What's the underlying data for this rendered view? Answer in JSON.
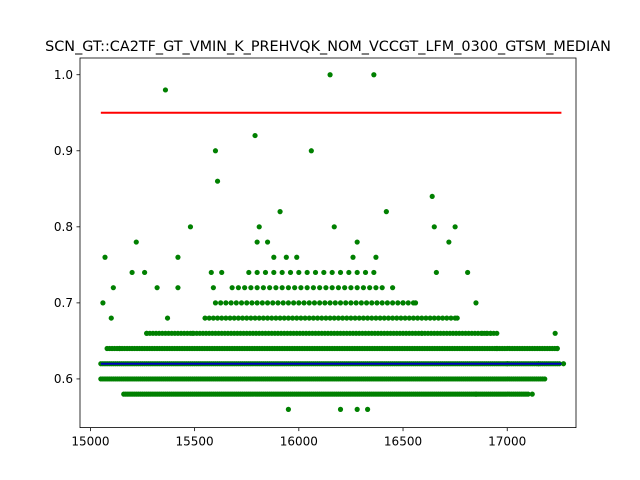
{
  "chart_data": {
    "type": "scatter",
    "title": "SCN_GT::CA2TF_GT_VMIN_K_PREHVQK_NOM_VCCGT_LFM_0300_GTSM_MEDIAN",
    "xlabel": "",
    "ylabel": "",
    "xlim": [
      14950,
      17330
    ],
    "ylim": [
      0.536,
      1.022
    ],
    "xticks": [
      "15000",
      "15500",
      "16000",
      "16500",
      "17000"
    ],
    "yticks": [
      "0.6",
      "0.7",
      "0.8",
      "0.9",
      "1.0"
    ],
    "xtick_values": [
      15000,
      15500,
      16000,
      16500,
      17000
    ],
    "ytick_values": [
      0.6,
      0.7,
      0.8,
      0.9,
      1.0
    ],
    "grid": false,
    "legend": "none",
    "colors": {
      "points": "#008000",
      "upper_limit": "#ff0000",
      "median": "#0000bf"
    },
    "lines": [
      {
        "kind": "upper-limit",
        "x": [
          15050,
          17260
        ],
        "y": [
          0.95,
          0.95
        ]
      },
      {
        "kind": "median",
        "x": [
          15050,
          17260
        ],
        "y": [
          0.62,
          0.62
        ]
      }
    ],
    "bands": [
      {
        "y": 0.58,
        "x_start": 15160,
        "x_end": 17100,
        "step": 10
      },
      {
        "y": 0.6,
        "x_start": 15050,
        "x_end": 17180,
        "step": 10
      },
      {
        "y": 0.62,
        "x_start": 15050,
        "x_end": 17250,
        "step": 10
      },
      {
        "y": 0.64,
        "x_start": 15080,
        "x_end": 17240,
        "step": 12
      },
      {
        "y": 0.66,
        "x_start": 15270,
        "x_end": 16950,
        "step": 15
      },
      {
        "y": 0.68,
        "x_start": 15550,
        "x_end": 16750,
        "step": 20
      },
      {
        "y": 0.7,
        "x_start": 15600,
        "x_end": 16550,
        "step": 25
      },
      {
        "y": 0.72,
        "x_start": 15680,
        "x_end": 16400,
        "step": 30
      },
      {
        "y": 0.74,
        "x_start": 15760,
        "x_end": 16360,
        "step": 40
      }
    ],
    "points": [
      {
        "x": 15060,
        "y": 0.7
      },
      {
        "x": 15070,
        "y": 0.76
      },
      {
        "x": 15100,
        "y": 0.68
      },
      {
        "x": 15110,
        "y": 0.72
      },
      {
        "x": 15140,
        "y": 0.64
      },
      {
        "x": 15200,
        "y": 0.74
      },
      {
        "x": 15220,
        "y": 0.78
      },
      {
        "x": 15260,
        "y": 0.74
      },
      {
        "x": 15270,
        "y": 0.66
      },
      {
        "x": 15320,
        "y": 0.72
      },
      {
        "x": 15370,
        "y": 0.68
      },
      {
        "x": 15360,
        "y": 0.98
      },
      {
        "x": 15420,
        "y": 0.72
      },
      {
        "x": 15420,
        "y": 0.76
      },
      {
        "x": 15480,
        "y": 0.8
      },
      {
        "x": 15490,
        "y": 0.66
      },
      {
        "x": 15580,
        "y": 0.74
      },
      {
        "x": 15590,
        "y": 0.72
      },
      {
        "x": 15600,
        "y": 0.9
      },
      {
        "x": 15610,
        "y": 0.86
      },
      {
        "x": 15630,
        "y": 0.74
      },
      {
        "x": 15790,
        "y": 0.92
      },
      {
        "x": 15810,
        "y": 0.8
      },
      {
        "x": 15800,
        "y": 0.78
      },
      {
        "x": 15850,
        "y": 0.78
      },
      {
        "x": 15880,
        "y": 0.76
      },
      {
        "x": 15910,
        "y": 0.82
      },
      {
        "x": 15940,
        "y": 0.76
      },
      {
        "x": 15990,
        "y": 0.76
      },
      {
        "x": 16060,
        "y": 0.9
      },
      {
        "x": 16150,
        "y": 1.0
      },
      {
        "x": 16170,
        "y": 0.8
      },
      {
        "x": 16260,
        "y": 0.76
      },
      {
        "x": 16280,
        "y": 0.78
      },
      {
        "x": 16360,
        "y": 1.0
      },
      {
        "x": 16370,
        "y": 0.76
      },
      {
        "x": 16420,
        "y": 0.82
      },
      {
        "x": 16450,
        "y": 0.72
      },
      {
        "x": 16500,
        "y": 0.7
      },
      {
        "x": 16560,
        "y": 0.7
      },
      {
        "x": 16590,
        "y": 0.66
      },
      {
        "x": 16640,
        "y": 0.84
      },
      {
        "x": 16650,
        "y": 0.8
      },
      {
        "x": 16660,
        "y": 0.74
      },
      {
        "x": 16720,
        "y": 0.78
      },
      {
        "x": 16750,
        "y": 0.8
      },
      {
        "x": 16760,
        "y": 0.68
      },
      {
        "x": 16810,
        "y": 0.74
      },
      {
        "x": 16850,
        "y": 0.7
      },
      {
        "x": 16880,
        "y": 0.66
      },
      {
        "x": 16900,
        "y": 0.66
      },
      {
        "x": 16920,
        "y": 0.66
      },
      {
        "x": 16950,
        "y": 0.64
      },
      {
        "x": 17000,
        "y": 0.62
      },
      {
        "x": 17120,
        "y": 0.58
      },
      {
        "x": 17150,
        "y": 0.62
      },
      {
        "x": 17230,
        "y": 0.66
      },
      {
        "x": 17240,
        "y": 0.64
      },
      {
        "x": 17270,
        "y": 0.62
      },
      {
        "x": 16850,
        "y": 0.58
      },
      {
        "x": 15950,
        "y": 0.56
      },
      {
        "x": 16200,
        "y": 0.56
      },
      {
        "x": 16280,
        "y": 0.56
      },
      {
        "x": 16330,
        "y": 0.56
      }
    ]
  }
}
